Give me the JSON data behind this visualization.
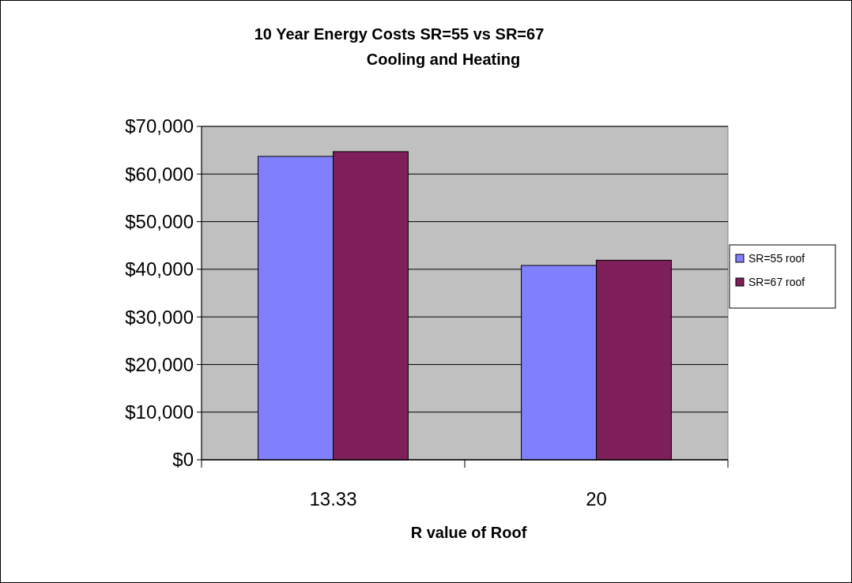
{
  "chart_data": {
    "type": "bar",
    "title": "10 Year Energy Costs SR=55 vs SR=67",
    "subtitle": "Cooling and Heating",
    "xlabel": "R value of Roof",
    "categories": [
      "13.33",
      "20"
    ],
    "series": [
      {
        "name": "SR=55 roof",
        "color": "#8080ff",
        "values": [
          63700,
          40800
        ]
      },
      {
        "name": "SR=67 roof",
        "color": "#7f1f5a",
        "values": [
          64700,
          41900
        ]
      }
    ],
    "ylim": [
      0,
      70000
    ],
    "yticks": [
      {
        "value": 0,
        "label": "$0"
      },
      {
        "value": 10000,
        "label": "$10,000"
      },
      {
        "value": 20000,
        "label": "$20,000"
      },
      {
        "value": 30000,
        "label": "$30,000"
      },
      {
        "value": 40000,
        "label": "$40,000"
      },
      {
        "value": 50000,
        "label": "$50,000"
      },
      {
        "value": 60000,
        "label": "$60,000"
      },
      {
        "value": 70000,
        "label": "$70,000"
      }
    ],
    "grid": "y",
    "legend": "right"
  }
}
